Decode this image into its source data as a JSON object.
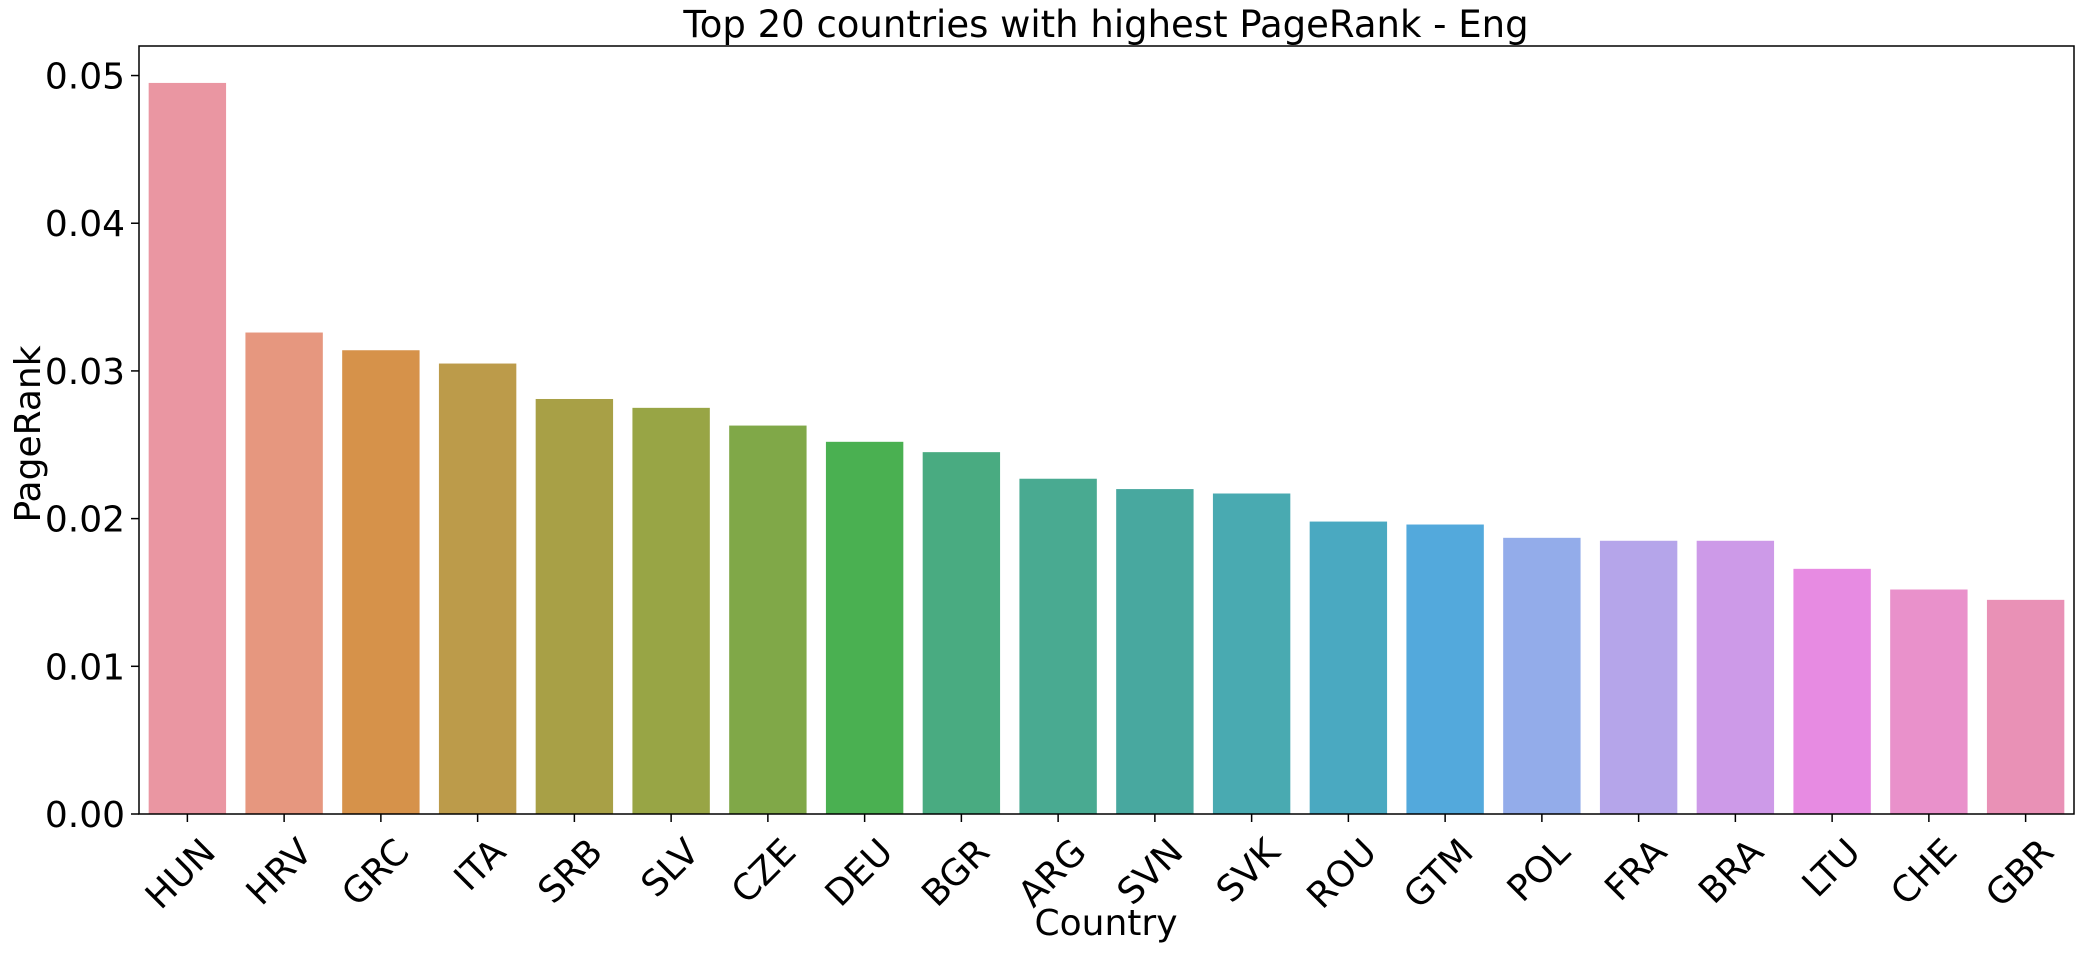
{
  "chart_data": {
    "type": "bar",
    "title": "Top 20 countries with highest PageRank - Eng",
    "xlabel": "Country",
    "ylabel": "PageRank",
    "categories": [
      "HUN",
      "HRV",
      "GRC",
      "ITA",
      "SRB",
      "SLV",
      "CZE",
      "DEU",
      "BGR",
      "ARG",
      "SVN",
      "SVK",
      "ROU",
      "GTM",
      "POL",
      "FRA",
      "BRA",
      "LTU",
      "CHE",
      "GBR"
    ],
    "values": [
      0.0495,
      0.0326,
      0.0314,
      0.0305,
      0.0281,
      0.0275,
      0.0263,
      0.0252,
      0.0245,
      0.0227,
      0.022,
      0.0217,
      0.0198,
      0.0196,
      0.0187,
      0.0185,
      0.0185,
      0.0166,
      0.0152,
      0.0145
    ],
    "colors": [
      "#ea96a2",
      "#e6977f",
      "#d6924a",
      "#bc9b4a",
      "#a8a046",
      "#98a545",
      "#80a848",
      "#4ab051",
      "#49ab81",
      "#49aa91",
      "#48a89f",
      "#49aab1",
      "#4aa9c1",
      "#53a9dc",
      "#93acea",
      "#b5a5ea",
      "#cd9ae8",
      "#e78be2",
      "#e991cb",
      "#e991b6"
    ],
    "ylim": [
      0,
      0.052
    ],
    "yticks": [
      "0.00",
      "0.01",
      "0.02",
      "0.03",
      "0.04",
      "0.05"
    ],
    "grid": false,
    "legend": "none"
  }
}
